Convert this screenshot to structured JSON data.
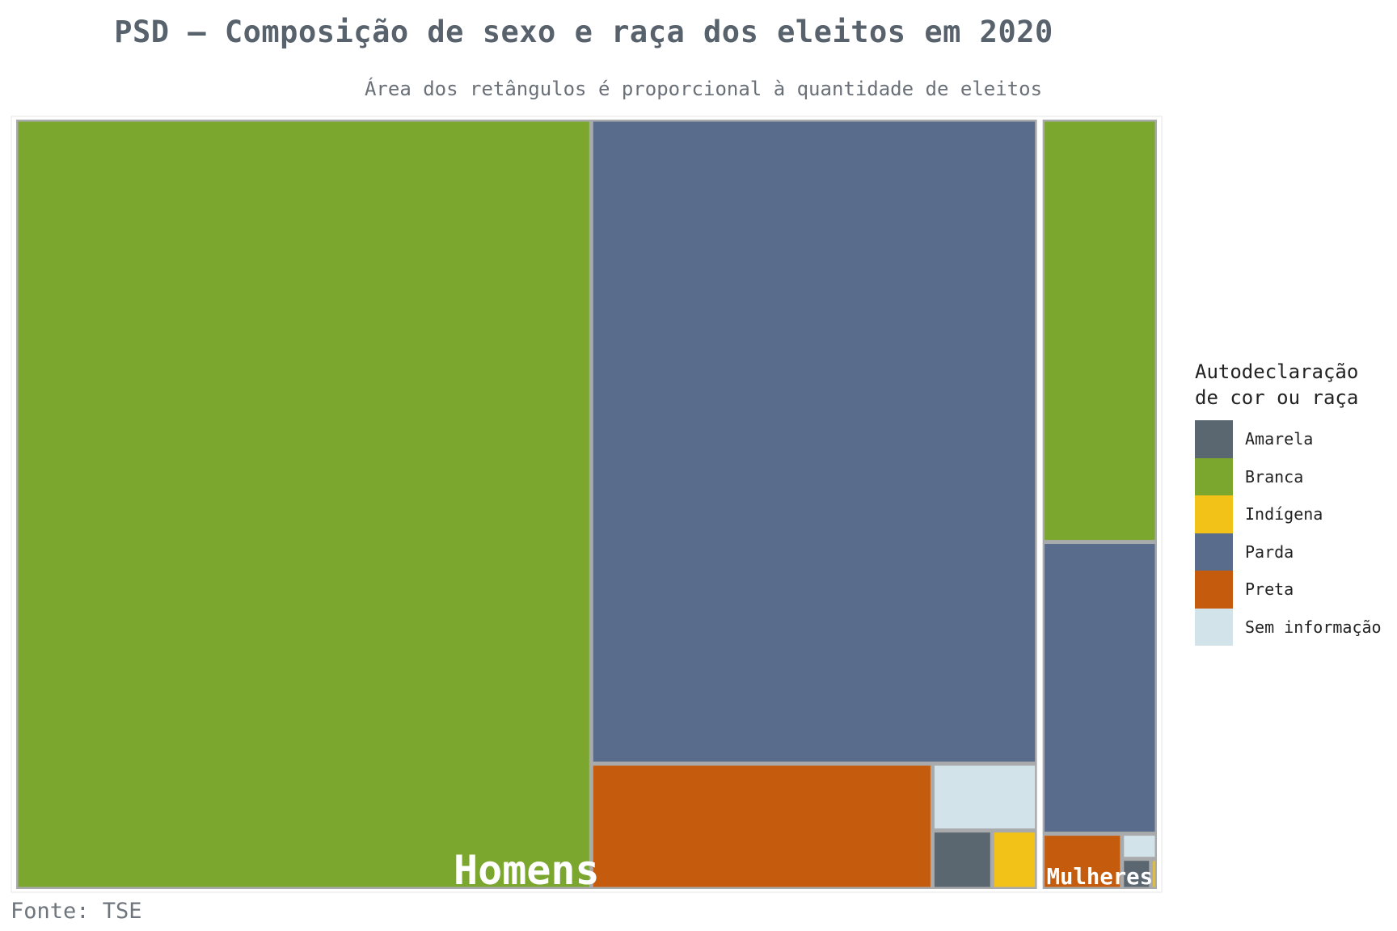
{
  "title": "PSD – Composição de sexo e raça dos eleitos em 2020",
  "subtitle": "Área dos retângulos é proporcional à quantidade de eleitos",
  "caption": "Fonte: TSE",
  "legend": {
    "title_line1": "Autodeclaração",
    "title_line2": "de cor ou raça",
    "items": [
      {
        "label": "Amarela",
        "color": "#5b6770"
      },
      {
        "label": "Branca",
        "color": "#7ca72f"
      },
      {
        "label": "Indígena",
        "color": "#f2c218"
      },
      {
        "label": "Parda",
        "color": "#596c8b"
      },
      {
        "label": "Preta",
        "color": "#c55b0c"
      },
      {
        "label": "Sem informação",
        "color": "#d3e3ea"
      }
    ]
  },
  "chart_data": {
    "type": "treemap",
    "title": "PSD – Composição de sexo e raça dos eleitos em 2020",
    "subtitle": "Área dos retângulos é proporcional à quantidade de eleitos",
    "unit": "relative area (share of elected, %)",
    "groups": [
      {
        "name": "Homens",
        "children": [
          {
            "category": "Branca",
            "value": 50.7
          },
          {
            "category": "Parda",
            "value": 32.9
          },
          {
            "category": "Preta",
            "value": 4.9
          },
          {
            "category": "Sem informação",
            "value": 0.8
          },
          {
            "category": "Amarela",
            "value": 0.4
          },
          {
            "category": "Indígena",
            "value": 0.3
          }
        ]
      },
      {
        "name": "Mulheres",
        "children": [
          {
            "category": "Branca",
            "value": 5.5
          },
          {
            "category": "Parda",
            "value": 3.8
          },
          {
            "category": "Preta",
            "value": 0.5
          },
          {
            "category": "Sem informação",
            "value": 0.1
          },
          {
            "category": "Amarela",
            "value": 0.1
          },
          {
            "category": "Indígena",
            "value": 0.02
          }
        ]
      }
    ],
    "colors": {
      "Amarela": "#5b6770",
      "Branca": "#7ca72f",
      "Indígena": "#f2c218",
      "Parda": "#596c8b",
      "Preta": "#c55b0c",
      "Sem informação": "#d3e3ea"
    }
  }
}
